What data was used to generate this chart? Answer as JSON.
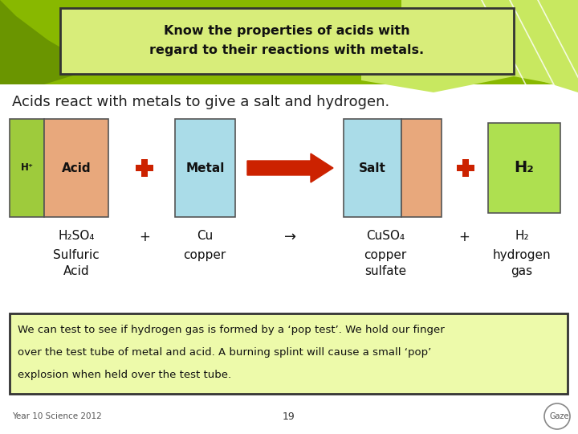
{
  "bg_color": "#ffffff",
  "title_box_color": "#d8ed7a",
  "title_text_line1": "Know the properties of acids with",
  "title_text_line2": "regard to their reactions with metals.",
  "subtitle": "Acids react with metals to give a salt and hydrogen.",
  "green_top_color": "#88b800",
  "green_dark_color": "#6a9500",
  "green_light_color": "#c8e860",
  "acid_left_color": "#9ecb3c",
  "acid_right_color": "#e8a87c",
  "metal_color": "#aadce8",
  "salt_left_color": "#aadce8",
  "salt_right_color": "#e8a87c",
  "h2_color": "#aee050",
  "plus_color": "#cc2200",
  "arrow_color": "#cc2200",
  "pop_box_color": "#edfaaa",
  "pop_test_text_line1": "We can test to see if hydrogen gas is formed by a ‘pop test’. We hold our finger",
  "pop_test_text_line2": "over the test tube of metal and acid. A burning splint will cause a small ‘pop’",
  "pop_test_text_line3": "explosion when held over the test tube.",
  "footer_left": "Year 10 Science 2012",
  "footer_center": "19",
  "footer_right": "Gaze"
}
